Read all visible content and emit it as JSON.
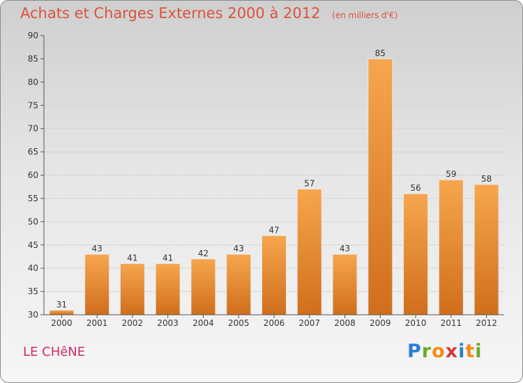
{
  "header": {
    "title": "Achats et Charges Externes 2000 à 2012",
    "subtitle": "(en milliers d'€)"
  },
  "footer": {
    "commune": "LE CHêNE",
    "brand_letters": [
      "P",
      "r",
      "o",
      "x",
      "i",
      "t",
      "i"
    ],
    "brand_colors": [
      "#2a7fd4",
      "#6aaa24",
      "#f08c1a",
      "#d43a3a",
      "#2a7fd4",
      "#f08c1a",
      "#6aaa24"
    ]
  },
  "colors": {
    "bar_light": "#f6a64e",
    "bar_dark": "#d06e1c",
    "title": "#d9533f",
    "commune": "#d12a6b"
  },
  "chart_data": {
    "type": "bar",
    "categories": [
      "2000",
      "2001",
      "2002",
      "2003",
      "2004",
      "2005",
      "2006",
      "2007",
      "2008",
      "2009",
      "2010",
      "2011",
      "2012"
    ],
    "values": [
      31,
      43,
      41,
      41,
      42,
      43,
      47,
      57,
      43,
      85,
      56,
      59,
      58
    ],
    "ylim": [
      30,
      90
    ],
    "yticks": [
      30,
      35,
      40,
      45,
      50,
      55,
      60,
      65,
      70,
      75,
      80,
      85,
      90
    ],
    "grid": true,
    "xlabel": "",
    "ylabel": ""
  }
}
